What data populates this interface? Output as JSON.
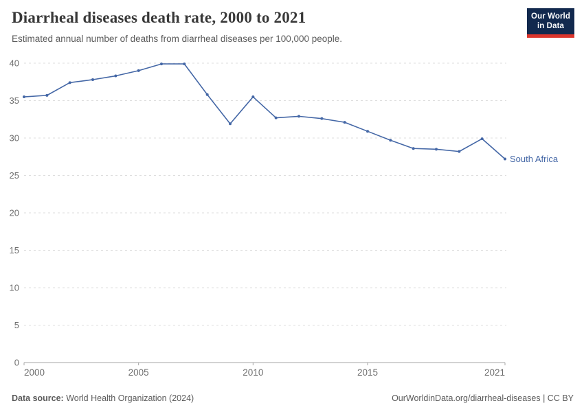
{
  "header": {
    "title": "Diarrheal diseases death rate, 2000 to 2021",
    "subtitle": "Estimated annual number of deaths from diarrheal diseases per 100,000 people.",
    "logo": {
      "line1": "Our World",
      "line2": "in Data"
    }
  },
  "chart_data": {
    "type": "line",
    "title": "Diarrheal diseases death rate, 2000 to 2021",
    "xlabel": "",
    "ylabel": "",
    "x": [
      2000,
      2001,
      2002,
      2003,
      2004,
      2005,
      2006,
      2007,
      2008,
      2009,
      2010,
      2011,
      2012,
      2013,
      2014,
      2015,
      2016,
      2017,
      2018,
      2019,
      2020,
      2021
    ],
    "series": [
      {
        "name": "South Africa",
        "color": "#4467a6",
        "values": [
          35.5,
          35.7,
          37.4,
          37.8,
          38.3,
          39.0,
          39.9,
          39.9,
          35.8,
          31.9,
          35.5,
          32.7,
          32.9,
          32.6,
          32.1,
          30.9,
          29.7,
          28.6,
          28.5,
          28.2,
          29.9,
          27.2
        ]
      }
    ],
    "xlim": [
      2000,
      2021
    ],
    "ylim": [
      0,
      40
    ],
    "x_ticks": [
      2000,
      2005,
      2010,
      2015,
      2021
    ],
    "y_ticks": [
      0,
      5,
      10,
      15,
      20,
      25,
      30,
      35,
      40
    ],
    "grid": true,
    "grid_style": "dashed",
    "legend_position": "end-of-line-label",
    "marker": "dot"
  },
  "colors": {
    "line": "#4467a6",
    "grid": "#dddddd",
    "axis": "#a5a5a5",
    "tick_text": "#6e6e6e",
    "logo_bg": "#12294e",
    "logo_red": "#dc352c"
  },
  "footer": {
    "datasource_label": "Data source:",
    "datasource_text": " World Health Organization (2024)",
    "attribution": "OurWorldinData.org/diarrheal-diseases | CC BY"
  }
}
